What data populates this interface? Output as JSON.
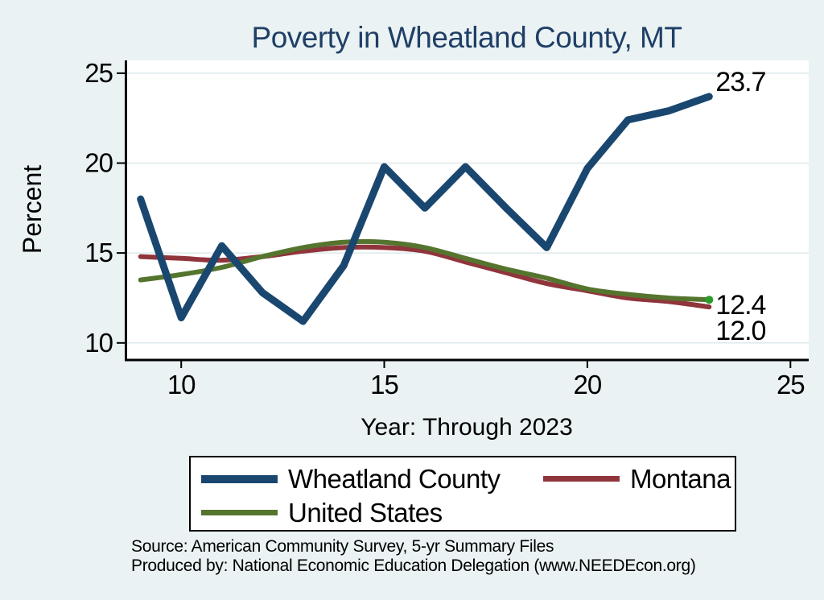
{
  "chart_data": {
    "type": "line",
    "title": "Poverty in Wheatland County, MT",
    "xlabel": "Year: Through 2023",
    "ylabel": "Percent",
    "x": [
      9,
      10,
      11,
      12,
      13,
      14,
      15,
      16,
      17,
      18,
      19,
      20,
      21,
      22,
      23
    ],
    "x_ticks": [
      10,
      15,
      20,
      25
    ],
    "y_ticks": [
      10,
      15,
      20,
      25
    ],
    "x_range": [
      8.61,
      25.45
    ],
    "y_range": [
      9.05,
      25.71
    ],
    "grid": "horizontal-gridlines",
    "legend_position": "bottom",
    "series": [
      {
        "name": "Wheatland County",
        "color": "#1a476f",
        "line_width": 9,
        "smooth": false,
        "z": 3,
        "end_label": "23.7",
        "values": [
          18.0,
          11.4,
          15.4,
          12.8,
          11.2,
          14.3,
          19.8,
          17.5,
          19.8,
          17.5,
          15.3,
          19.7,
          22.4,
          22.9,
          23.7
        ]
      },
      {
        "name": "Montana",
        "color": "#90353b",
        "line_width": 6,
        "smooth": true,
        "z": 1,
        "end_label": "12.0",
        "values": [
          14.8,
          14.7,
          14.6,
          14.8,
          15.1,
          15.3,
          15.3,
          15.1,
          14.5,
          13.9,
          13.3,
          12.9,
          12.5,
          12.3,
          12.0
        ]
      },
      {
        "name": "United States",
        "color": "#55752f",
        "line_width": 6,
        "smooth": true,
        "z": 2,
        "end_label": "12.4",
        "end_marker_color": "#2a9c2a",
        "values": [
          13.5,
          13.8,
          14.2,
          14.8,
          15.3,
          15.6,
          15.6,
          15.3,
          14.7,
          14.1,
          13.6,
          13.0,
          12.7,
          12.5,
          12.4
        ]
      }
    ]
  },
  "notes": {
    "source": "Source: American Community Survey, 5-yr Summary Files",
    "produced_by": "Produced by: National Economic Education Delegation (www.NEEDEcon.org)"
  },
  "colors": {
    "background": "#eaf2f3",
    "plot_background": "#ffffff",
    "grid": "#dde9eb",
    "axis": "#000000",
    "text": "#000000",
    "title": "#1f3f66"
  }
}
